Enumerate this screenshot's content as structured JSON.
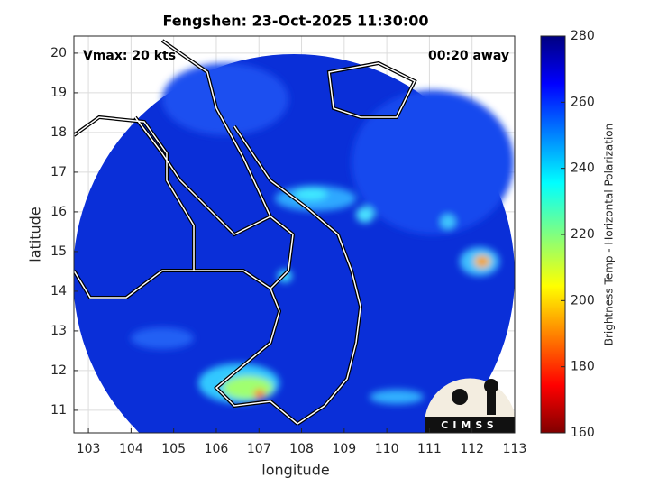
{
  "chart_data": {
    "type": "map",
    "title": "Fengshen: 23-Oct-2025 11:30:00",
    "annotations": [
      "Vmax: 20 kts",
      "00:20 away"
    ],
    "x_label": "longitude",
    "y_label": "latitude",
    "xlim": [
      102.66,
      113
    ],
    "ylim": [
      10.43,
      20.43
    ],
    "xticks": [
      103,
      104,
      105,
      106,
      107,
      108,
      109,
      110,
      111,
      112,
      113
    ],
    "yticks": [
      11,
      12,
      13,
      14,
      15,
      16,
      17,
      18,
      19,
      20
    ],
    "grid": true,
    "colorbar": {
      "label": "Brightness Temp - Horizontal Polarization",
      "lim": [
        160,
        280
      ],
      "ticks": [
        160,
        180,
        200,
        220,
        240,
        260,
        280
      ]
    },
    "logo": "CIMSS"
  }
}
